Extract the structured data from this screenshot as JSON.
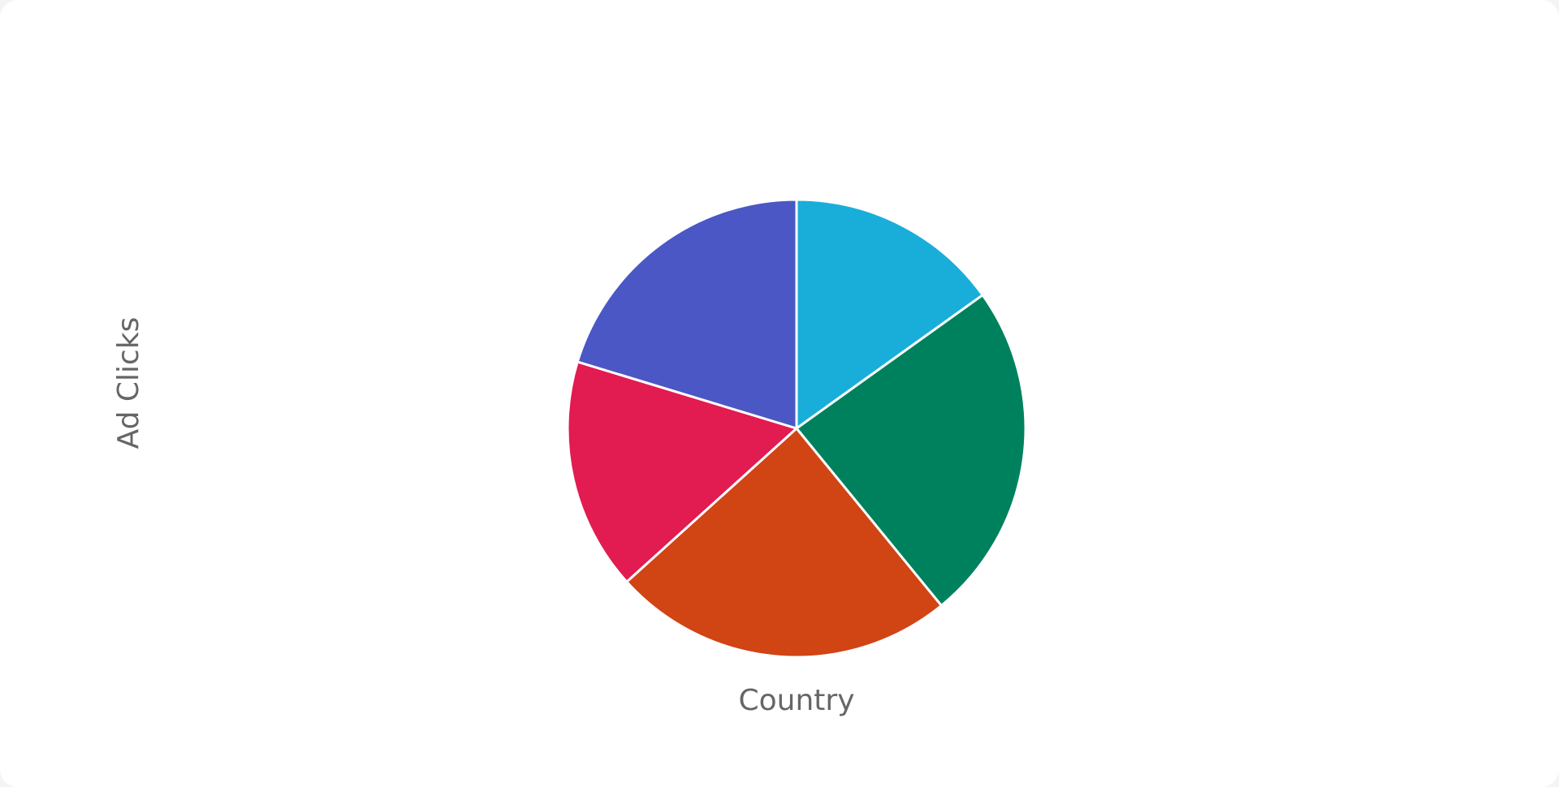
{
  "chart_data": {
    "type": "pie",
    "title": "",
    "xlabel": "Country",
    "ylabel": "Ad Clicks",
    "start_angle": "top, clockwise",
    "legend": "none",
    "slices": [
      {
        "value": 15.1,
        "color": "#19aed9"
      },
      {
        "value": 24.0,
        "color": "#00815e"
      },
      {
        "value": 24.2,
        "color": "#d14414"
      },
      {
        "value": 16.4,
        "color": "#e21b51"
      },
      {
        "value": 20.3,
        "color": "#4a57c4"
      }
    ]
  }
}
